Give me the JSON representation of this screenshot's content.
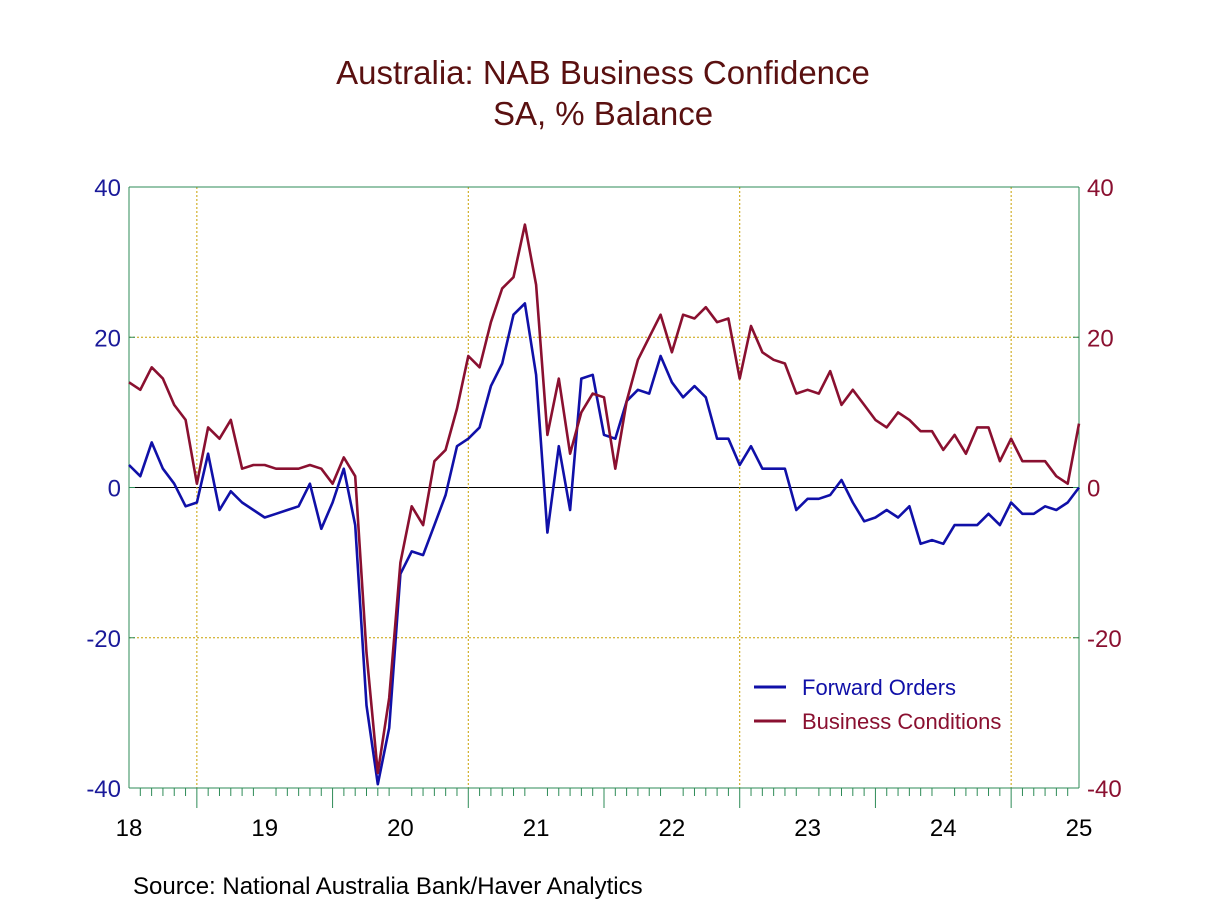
{
  "chart_data": {
    "type": "line",
    "title": "Australia: NAB Business Confidence",
    "subtitle": "SA, % Balance",
    "source": "Source:  National Australia Bank/Haver Analytics",
    "ylim": [
      -40,
      40
    ],
    "y_ticks": [
      "40",
      "20",
      "0",
      "-20",
      "-40"
    ],
    "y_tick_values": [
      40,
      20,
      0,
      -20,
      -40
    ],
    "x_start": 2018.0,
    "x_end": 2025.0,
    "x_tick_labels": [
      "18",
      "19",
      "20",
      "21",
      "22",
      "23",
      "24",
      "25"
    ],
    "x_tick_values": [
      2018,
      2019,
      2020,
      2021,
      2022,
      2023,
      2024,
      2025
    ],
    "grid": true,
    "legend_position": "bottom-right",
    "series": [
      {
        "name": "Forward Orders",
        "color": "#1010a8",
        "x": [
          2018.0,
          2018.083,
          2018.167,
          2018.25,
          2018.333,
          2018.417,
          2018.5,
          2018.583,
          2018.667,
          2018.75,
          2018.833,
          2018.917,
          2019.0,
          2019.083,
          2019.167,
          2019.25,
          2019.333,
          2019.417,
          2019.5,
          2019.583,
          2019.667,
          2019.75,
          2019.833,
          2019.917,
          2020.0,
          2020.083,
          2020.167,
          2020.25,
          2020.333,
          2020.417,
          2020.5,
          2020.583,
          2020.667,
          2020.75,
          2020.833,
          2020.917,
          2021.0,
          2021.083,
          2021.167,
          2021.25,
          2021.333,
          2021.417,
          2021.5,
          2021.583,
          2021.667,
          2021.75,
          2021.833,
          2021.917,
          2022.0,
          2022.083,
          2022.167,
          2022.25,
          2022.333,
          2022.417,
          2022.5,
          2022.583,
          2022.667,
          2022.75,
          2022.833,
          2022.917,
          2023.0,
          2023.083,
          2023.167,
          2023.25,
          2023.333,
          2023.417,
          2023.5,
          2023.583,
          2023.667,
          2023.75,
          2023.833,
          2023.917,
          2024.0,
          2024.083,
          2024.167,
          2024.25,
          2024.333,
          2024.417,
          2024.5,
          2024.583,
          2024.667,
          2024.75,
          2024.833,
          2024.917,
          2025.0
        ],
        "values": [
          3,
          1.5,
          6,
          2.5,
          0.5,
          -2.5,
          -2,
          4.5,
          -3,
          -0.5,
          -2,
          -3,
          -4,
          -3.5,
          -3,
          -2.5,
          0.5,
          -5.5,
          -2,
          2.5,
          -5,
          -29,
          -39.5,
          -32,
          -11.5,
          -8.5,
          -9,
          -5,
          -1,
          5.5,
          6.5,
          8,
          13.5,
          16.5,
          23,
          24.5,
          15,
          -6,
          5.5,
          -3,
          14.5,
          15,
          7,
          6.5,
          11.5,
          13,
          12.5,
          17.5,
          14,
          12,
          13.5,
          12,
          6.5,
          6.5,
          3,
          5.5,
          2.5,
          2.5,
          2.5,
          -3,
          -1.5,
          -1.5,
          -1,
          1,
          -2,
          -4.5,
          -4,
          -3,
          -4,
          -2.5,
          -7.5,
          -7,
          -7.5,
          -5,
          -5,
          -5,
          -3.5,
          -5,
          -2,
          -3.5,
          -3.5,
          -2.5,
          -3,
          -2,
          0
        ]
      },
      {
        "name": "Business Conditions",
        "color": "#8a1030",
        "x": [
          2018.0,
          2018.083,
          2018.167,
          2018.25,
          2018.333,
          2018.417,
          2018.5,
          2018.583,
          2018.667,
          2018.75,
          2018.833,
          2018.917,
          2019.0,
          2019.083,
          2019.167,
          2019.25,
          2019.333,
          2019.417,
          2019.5,
          2019.583,
          2019.667,
          2019.75,
          2019.833,
          2019.917,
          2020.0,
          2020.083,
          2020.167,
          2020.25,
          2020.333,
          2020.417,
          2020.5,
          2020.583,
          2020.667,
          2020.75,
          2020.833,
          2020.917,
          2021.0,
          2021.083,
          2021.167,
          2021.25,
          2021.333,
          2021.417,
          2021.5,
          2021.583,
          2021.667,
          2021.75,
          2021.833,
          2021.917,
          2022.0,
          2022.083,
          2022.167,
          2022.25,
          2022.333,
          2022.417,
          2022.5,
          2022.583,
          2022.667,
          2022.75,
          2022.833,
          2022.917,
          2023.0,
          2023.083,
          2023.167,
          2023.25,
          2023.333,
          2023.417,
          2023.5,
          2023.583,
          2023.667,
          2023.75,
          2023.833,
          2023.917,
          2024.0,
          2024.083,
          2024.167,
          2024.25,
          2024.333,
          2024.417,
          2024.5,
          2024.583,
          2024.667,
          2024.75,
          2024.833,
          2024.917,
          2025.0
        ],
        "values": [
          14,
          13,
          16,
          14.5,
          11,
          9,
          0.5,
          8,
          6.5,
          9,
          2.5,
          3,
          3,
          2.5,
          2.5,
          2.5,
          3,
          2.5,
          0.5,
          4,
          1.5,
          -22,
          -38,
          -28,
          -10,
          -2.5,
          -5,
          3.5,
          5,
          10.5,
          17.5,
          16,
          22,
          26.5,
          28,
          35,
          27,
          7,
          14.5,
          4.5,
          10,
          12.5,
          12,
          2.5,
          11.5,
          17,
          20,
          23,
          18,
          23,
          22.5,
          24,
          22,
          22.5,
          14.5,
          21.5,
          18,
          17,
          16.5,
          12.5,
          13,
          12.5,
          15.5,
          11,
          13,
          11,
          9,
          8,
          10,
          9,
          7.5,
          7.5,
          5,
          7,
          4.5,
          8,
          8,
          3.5,
          6.5,
          3.5,
          3.5,
          3.5,
          1.5,
          0.5,
          8.5
        ]
      }
    ]
  }
}
